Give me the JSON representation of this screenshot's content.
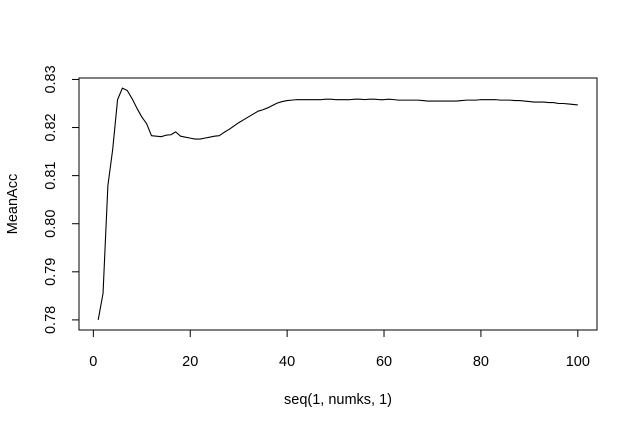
{
  "chart_data": {
    "type": "line",
    "title": "",
    "xlabel": "seq(1, numks, 1)",
    "ylabel": "MeanAcc",
    "xlim": [
      -2.96,
      103.96
    ],
    "ylim": [
      0.7779,
      0.8303
    ],
    "xticks": [
      0,
      20,
      40,
      60,
      80,
      100
    ],
    "xtick_labels": [
      "0",
      "20",
      "40",
      "60",
      "80",
      "100"
    ],
    "yticks": [
      0.78,
      0.79,
      0.8,
      0.81,
      0.82,
      0.83
    ],
    "ytick_labels": [
      "0.78",
      "0.79",
      "0.80",
      "0.81",
      "0.82",
      "0.83"
    ],
    "grid": false,
    "legend": "none",
    "line_color": "#000000",
    "series": [
      {
        "x": [
          1,
          2,
          3,
          4,
          5,
          6,
          7,
          8,
          9,
          10,
          11,
          12,
          13,
          14,
          15,
          16,
          17,
          18,
          19,
          20,
          21,
          22,
          23,
          24,
          25,
          26,
          27,
          28,
          29,
          30,
          31,
          32,
          33,
          34,
          35,
          36,
          37,
          38,
          39,
          40,
          41,
          42,
          43,
          44,
          45,
          46,
          47,
          48,
          49,
          50,
          51,
          52,
          53,
          54,
          55,
          56,
          57,
          58,
          59,
          60,
          61,
          62,
          63,
          64,
          65,
          66,
          67,
          68,
          69,
          70,
          71,
          72,
          73,
          74,
          75,
          76,
          77,
          78,
          79,
          80,
          81,
          82,
          83,
          84,
          85,
          86,
          87,
          88,
          89,
          90,
          91,
          92,
          93,
          94,
          95,
          96,
          97,
          98,
          99,
          100
        ],
        "values": [
          0.78,
          0.7855,
          0.8079,
          0.8155,
          0.8258,
          0.8282,
          0.8277,
          0.826,
          0.824,
          0.8222,
          0.8208,
          0.8183,
          0.8182,
          0.8181,
          0.8184,
          0.8185,
          0.8191,
          0.8182,
          0.818,
          0.8178,
          0.8176,
          0.8176,
          0.8178,
          0.818,
          0.8182,
          0.8183,
          0.819,
          0.8196,
          0.8203,
          0.821,
          0.8216,
          0.8222,
          0.8228,
          0.8234,
          0.8237,
          0.8241,
          0.8246,
          0.8251,
          0.8254,
          0.8256,
          0.8257,
          0.8258,
          0.8258,
          0.8258,
          0.8258,
          0.8258,
          0.8258,
          0.8259,
          0.8259,
          0.8258,
          0.8258,
          0.8258,
          0.8258,
          0.8259,
          0.8259,
          0.8258,
          0.8259,
          0.8259,
          0.8258,
          0.8258,
          0.8259,
          0.8258,
          0.8257,
          0.8257,
          0.8257,
          0.8257,
          0.8257,
          0.8256,
          0.8255,
          0.8255,
          0.8255,
          0.8255,
          0.8255,
          0.8255,
          0.8255,
          0.8256,
          0.8257,
          0.8257,
          0.8257,
          0.8258,
          0.8258,
          0.8258,
          0.8258,
          0.8257,
          0.8257,
          0.8257,
          0.8256,
          0.8256,
          0.8255,
          0.8254,
          0.8253,
          0.8253,
          0.8253,
          0.8252,
          0.8252,
          0.825,
          0.825,
          0.8249,
          0.8248,
          0.8247
        ]
      }
    ]
  }
}
